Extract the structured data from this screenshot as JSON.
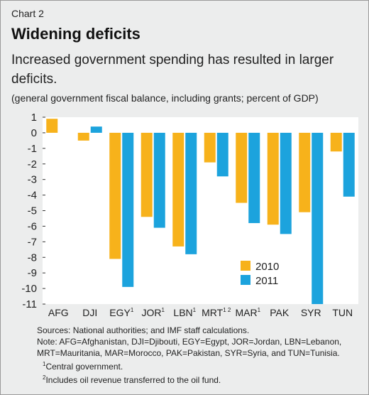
{
  "header": {
    "chart_label": "Chart 2",
    "title": "Widening deficits",
    "subtitle": "Increased government spending has resulted in larger deficits.",
    "units": "(general government fiscal balance, including grants; percent of GDP)"
  },
  "notes": {
    "sources": "Sources: National authorities; and IMF staff calculations.",
    "note_1": "Note: AFG=Afghanistan, DJI=Djibouti, EGY=Egypt, JOR=Jordan, LBN=Lebanon,",
    "note_2": "MRT=Mauritania, MAR=Morocco, PAK=Pakistan, SYR=Syria, and TUN=Tunisia.",
    "footnote_1_mark": "1",
    "footnote_1": "Central government.",
    "footnote_2_mark": "2",
    "footnote_2": "Includes oil revenue transferred to the oil fund."
  },
  "chart_data": {
    "type": "bar",
    "title": "Widening deficits",
    "subtitle": "Increased government spending has resulted in larger deficits.",
    "ylabel": "(general government fiscal balance, including grants; percent of GDP)",
    "categories": [
      "AFG",
      "DJI",
      "EGY",
      "JOR",
      "LBN",
      "MRT",
      "MAR",
      "PAK",
      "SYR",
      "TUN"
    ],
    "category_superscripts": [
      "",
      "",
      "1",
      "1",
      "1",
      "1 2",
      "1",
      "",
      "",
      ""
    ],
    "series": [
      {
        "name": "2010",
        "color": "#f7b21b",
        "values": [
          0.9,
          -0.5,
          -8.1,
          -5.4,
          -7.3,
          -1.9,
          -4.5,
          -5.9,
          -5.1,
          -1.2
        ]
      },
      {
        "name": "2011",
        "color": "#1ca3dd",
        "values": [
          0,
          0.4,
          -9.9,
          -6.1,
          -7.8,
          -2.8,
          -5.8,
          -6.5,
          -11.0,
          -4.1
        ]
      }
    ],
    "ylim": [
      -11,
      1
    ],
    "yticks": [
      1,
      0,
      -1,
      -2,
      -3,
      -4,
      -5,
      -6,
      -7,
      -8,
      -9,
      -10,
      -11
    ],
    "grid": false,
    "legend": "bottom-center"
  }
}
